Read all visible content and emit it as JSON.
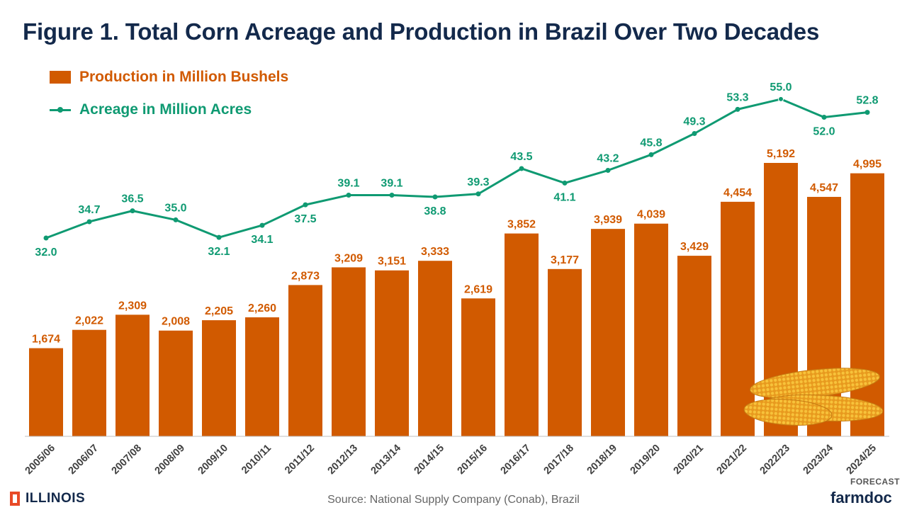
{
  "chart_data": {
    "type": "bar",
    "title": "Figure 1. Total Corn Acreage and Production in Brazil Over Two Decades",
    "categories": [
      "2005/06",
      "2006/07",
      "2007/08",
      "2008/09",
      "2009/10",
      "2010/11",
      "2011/12",
      "2012/13",
      "2013/14",
      "2014/15",
      "2015/16",
      "2016/17",
      "2017/18",
      "2018/19",
      "2019/20",
      "2020/21",
      "2021/22",
      "2022/23",
      "2023/24",
      "2024/25"
    ],
    "series": [
      {
        "name": "Production in Million Bushels",
        "type": "bar",
        "color": "#d15a00",
        "values": [
          1674,
          2022,
          2309,
          2008,
          2205,
          2260,
          2873,
          3209,
          3151,
          3333,
          2619,
          3852,
          3177,
          3939,
          4039,
          3429,
          4454,
          5192,
          4547,
          4995
        ],
        "labels": [
          "1,674",
          "2,022",
          "2,309",
          "2,008",
          "2,205",
          "2,260",
          "2,873",
          "3,209",
          "3,151",
          "3,333",
          "2,619",
          "3,852",
          "3,177",
          "3,939",
          "4,039",
          "3,429",
          "4,454",
          "5,192",
          "4,547",
          "4,995"
        ]
      },
      {
        "name": "Acreage in Million Acres",
        "type": "line",
        "color": "#0f9a72",
        "values": [
          32.0,
          34.7,
          36.5,
          35.0,
          32.1,
          34.1,
          37.5,
          39.1,
          39.1,
          38.8,
          39.3,
          43.5,
          41.1,
          43.2,
          45.8,
          49.3,
          53.3,
          55.0,
          52.0,
          52.8
        ],
        "labels": [
          "32.0",
          "34.7",
          "36.5",
          "35.0",
          "32.1",
          "34.1",
          "37.5",
          "39.1",
          "39.1",
          "38.8",
          "39.3",
          "43.5",
          "41.1",
          "43.2",
          "45.8",
          "49.3",
          "53.3",
          "55.0",
          "52.0",
          "52.8"
        ],
        "label_position": [
          "below",
          "above",
          "above",
          "above",
          "below",
          "below",
          "below",
          "above",
          "above",
          "below",
          "above",
          "above",
          "below",
          "above",
          "above",
          "above",
          "above",
          "above",
          "below",
          "above"
        ]
      }
    ],
    "legend": "top-left",
    "grid": false
  },
  "footer": {
    "university": "ILLINOIS",
    "source": "Source: National Supply Company (Conab), Brazil",
    "forecast_label": "FORECAST",
    "brand": "farmdoc"
  },
  "colors": {
    "title": "#13294b",
    "bar": "#d15a00",
    "line": "#0f9a72",
    "illinois_orange": "#e84a27"
  },
  "icons": [
    "illinois-block-i-icon",
    "corn-cobs-image"
  ]
}
